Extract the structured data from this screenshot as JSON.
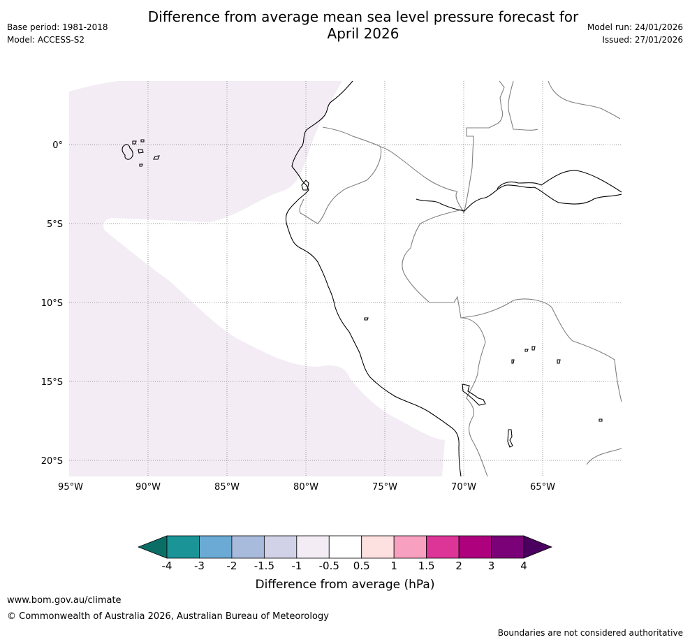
{
  "title": {
    "line1": "Difference from average mean sea level pressure forecast for",
    "line2": "April 2026"
  },
  "meta_left": {
    "base_period": "Base period: 1981-2018",
    "model": "Model: ACCESS-S2"
  },
  "meta_right": {
    "model_run": "Model run: 24/01/2026",
    "issued": "Issued: 27/01/2026"
  },
  "map": {
    "region": "Western South America",
    "lat_labels": [
      "0°",
      "5°S",
      "10°S",
      "15°S",
      "20°S"
    ],
    "lon_labels": [
      "95°W",
      "90°W",
      "85°W",
      "80°W",
      "75°W",
      "70°W",
      "65°W"
    ],
    "shaded_category": "-1 to -0.5 hPa",
    "colors": {
      "ocean_anomaly": "#f3ecf5",
      "coast": "#000000",
      "border": "#808080",
      "grid": "#888888"
    }
  },
  "legend": {
    "title": "Difference from average (hPa)",
    "ticks": [
      "-4",
      "-3",
      "-2",
      "-1.5",
      "-1",
      "-0.5",
      "0.5",
      "1",
      "1.5",
      "2",
      "3",
      "4"
    ],
    "low_extend_color": "#0b6e66",
    "high_extend_color": "#4b005f",
    "bins": [
      {
        "range": "-4 to -3",
        "color": "#1a9496"
      },
      {
        "range": "-3 to -2",
        "color": "#6aaad4"
      },
      {
        "range": "-2 to -1.5",
        "color": "#a9bbdc"
      },
      {
        "range": "-1.5 to -1",
        "color": "#d1d1e7"
      },
      {
        "range": "-1 to -0.5",
        "color": "#f3ecf5"
      },
      {
        "range": "-0.5 to 0.5",
        "color": "#ffffff"
      },
      {
        "range": "0.5 to 1",
        "color": "#fde0e0"
      },
      {
        "range": "1 to 1.5",
        "color": "#f8a0bf"
      },
      {
        "range": "1.5 to 2",
        "color": "#dd3497"
      },
      {
        "range": "2 to 3",
        "color": "#ae017e"
      },
      {
        "range": "3 to 4",
        "color": "#7a0177"
      }
    ]
  },
  "footer": {
    "url": "www.bom.gov.au/climate",
    "copyright": "© Commonwealth of Australia 2026, Australian Bureau of Meteorology",
    "note": "Boundaries are not considered authoritative"
  }
}
